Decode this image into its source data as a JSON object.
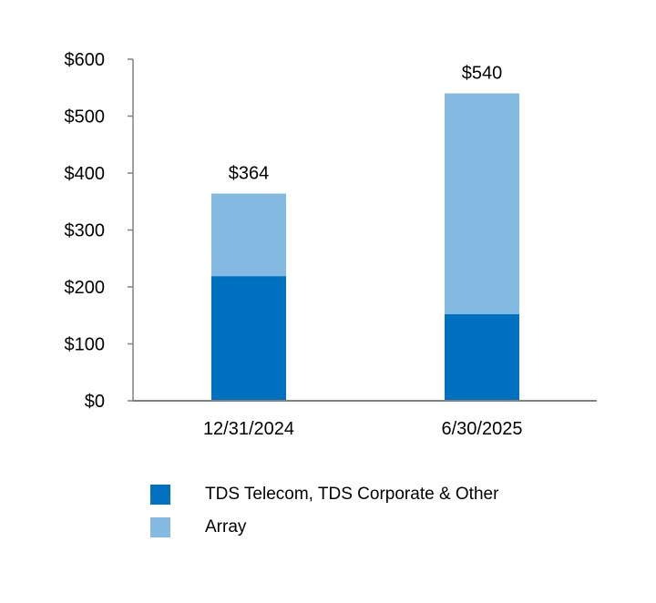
{
  "chart_data": {
    "type": "bar",
    "stacked": true,
    "categories": [
      "12/31/2024",
      "6/30/2025"
    ],
    "series": [
      {
        "name": "TDS Telecom, TDS Corporate & Other",
        "values": [
          219,
          152
        ],
        "color": "#0070C0"
      },
      {
        "name": "Array",
        "values": [
          145,
          388
        ],
        "color": "#84BAE2"
      }
    ],
    "totals": [
      "$364",
      "$540"
    ],
    "ylim": [
      0,
      600
    ],
    "yticks": [
      0,
      100,
      200,
      300,
      400,
      500,
      600
    ],
    "ytick_labels": [
      "$0",
      "$100",
      "$200",
      "$300",
      "$400",
      "$500",
      "$600"
    ],
    "grid": false,
    "legend_position": "bottom"
  }
}
